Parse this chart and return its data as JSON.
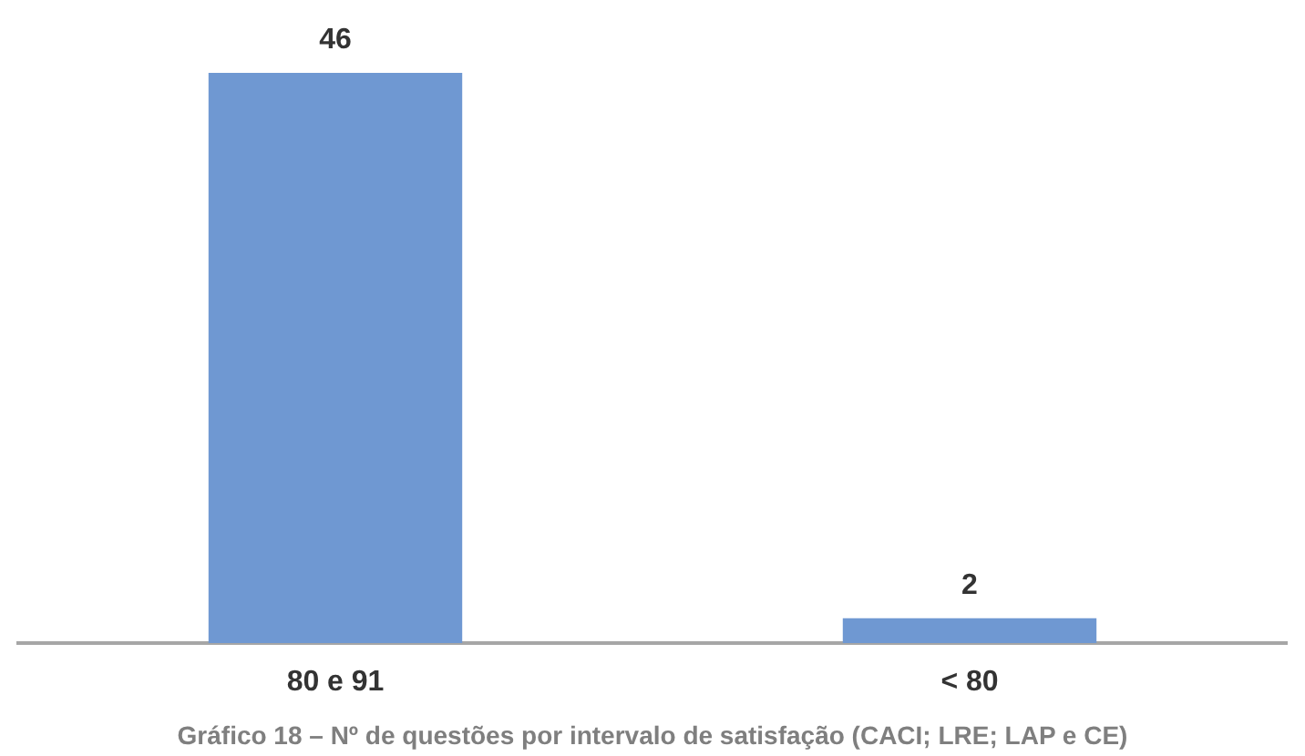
{
  "chart_data": {
    "type": "bar",
    "title": "Gráfico 18 – Nº de questões por intervalo de satisfação (CACI; LRE; LAP e CE)",
    "categories": [
      "80 e 91",
      "< 80"
    ],
    "values": [
      46,
      2
    ],
    "color": "#6f98d2",
    "data_labels": true,
    "grid": false,
    "legend": false
  }
}
